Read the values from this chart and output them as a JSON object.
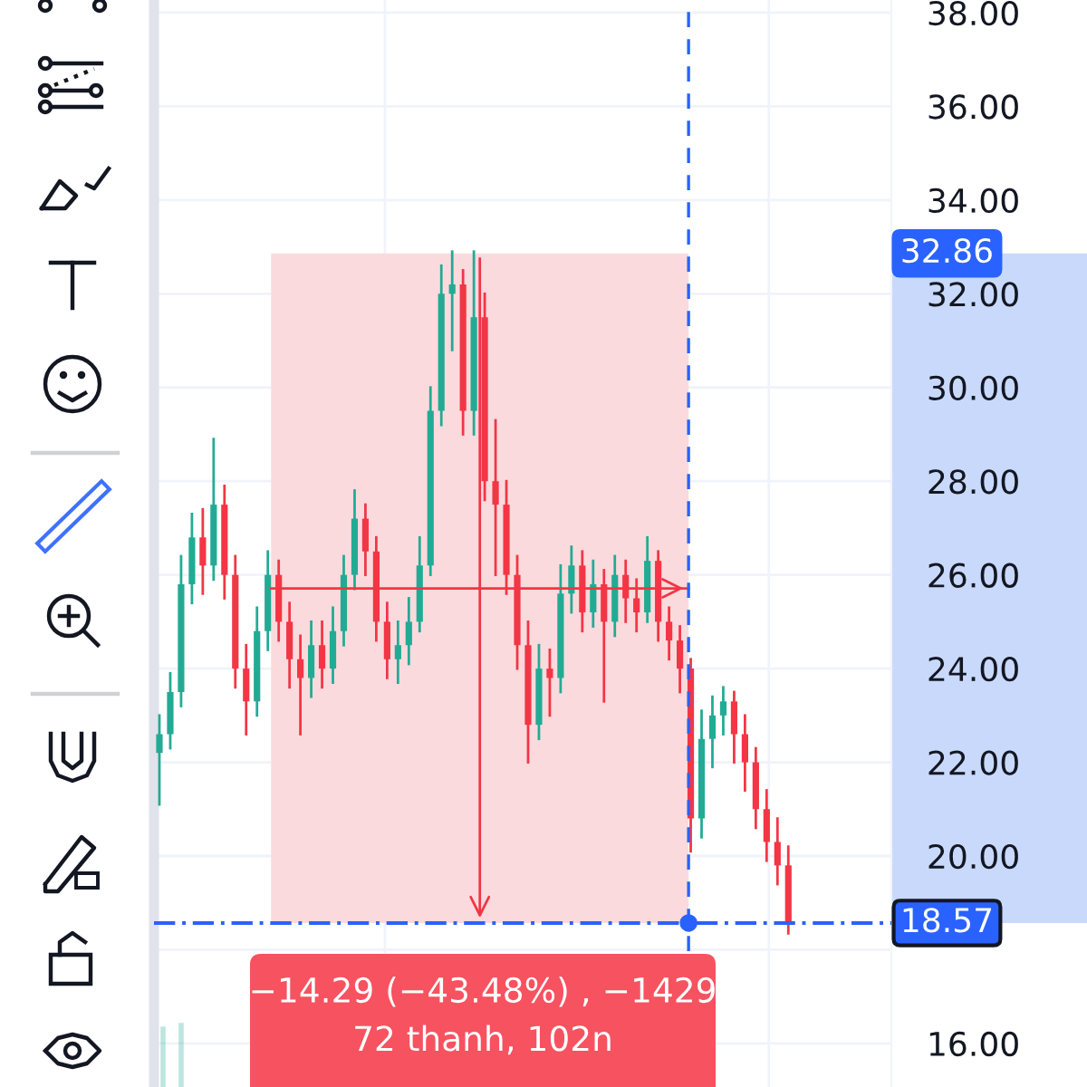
{
  "chart_data": {
    "type": "candlestick",
    "categories": [
      null,
      null,
      null,
      null,
      null,
      null,
      null,
      null,
      null,
      null,
      null,
      null,
      null,
      null,
      null,
      null,
      null,
      null,
      null,
      null,
      null,
      null,
      null,
      null,
      null,
      null,
      null,
      null,
      null,
      null,
      null,
      null,
      null,
      null,
      null,
      null,
      null,
      null,
      null,
      null,
      null,
      null,
      null,
      null,
      null,
      null,
      null,
      null,
      null,
      null,
      null,
      null,
      null,
      null,
      null,
      null,
      null,
      null,
      null,
      null,
      null,
      null,
      null,
      null,
      null,
      null,
      null,
      null
    ],
    "ohlc": [
      [
        22.2,
        23.0,
        21.1,
        22.6
      ],
      [
        22.6,
        23.9,
        22.3,
        23.5
      ],
      [
        23.5,
        26.4,
        23.2,
        25.8
      ],
      [
        25.8,
        27.3,
        25.4,
        26.8
      ],
      [
        26.8,
        27.4,
        25.6,
        26.2
      ],
      [
        26.2,
        28.9,
        25.9,
        27.5
      ],
      [
        27.5,
        27.9,
        25.5,
        26.0
      ],
      [
        26.0,
        26.4,
        23.6,
        24.0
      ],
      [
        24.0,
        24.5,
        22.6,
        23.3
      ],
      [
        23.3,
        25.3,
        23.0,
        24.8
      ],
      [
        24.8,
        26.5,
        24.4,
        26.0
      ],
      [
        26.0,
        26.3,
        24.6,
        25.0
      ],
      [
        25.0,
        25.4,
        23.6,
        24.2
      ],
      [
        24.2,
        24.7,
        22.6,
        23.8
      ],
      [
        23.8,
        25.0,
        23.4,
        24.5
      ],
      [
        24.5,
        25.0,
        23.6,
        24.0
      ],
      [
        24.0,
        25.3,
        23.7,
        24.8
      ],
      [
        24.8,
        26.4,
        24.5,
        26.0
      ],
      [
        26.0,
        27.8,
        25.7,
        27.2
      ],
      [
        27.2,
        27.5,
        26.0,
        26.5
      ],
      [
        26.5,
        26.8,
        24.6,
        25.0
      ],
      [
        25.0,
        25.4,
        23.8,
        24.2
      ],
      [
        24.2,
        25.0,
        23.7,
        24.5
      ],
      [
        24.5,
        25.5,
        24.1,
        25.0
      ],
      [
        25.0,
        26.8,
        24.8,
        26.2
      ],
      [
        26.2,
        30.0,
        26.0,
        29.5
      ],
      [
        29.5,
        32.6,
        29.2,
        32.0
      ],
      [
        32.0,
        32.9,
        30.8,
        32.2
      ],
      [
        32.2,
        32.5,
        29.0,
        29.5
      ],
      [
        29.5,
        32.9,
        29.0,
        31.5
      ],
      [
        31.5,
        32.0,
        27.6,
        28.0
      ],
      [
        28.0,
        29.3,
        26.0,
        27.5
      ],
      [
        27.5,
        28.0,
        25.6,
        26.0
      ],
      [
        26.0,
        26.4,
        24.0,
        24.5
      ],
      [
        24.5,
        25.0,
        22.0,
        22.8
      ],
      [
        22.8,
        24.5,
        22.5,
        24.0
      ],
      [
        24.0,
        24.4,
        23.0,
        23.8
      ],
      [
        23.8,
        26.2,
        23.5,
        25.6
      ],
      [
        25.6,
        26.6,
        25.2,
        26.2
      ],
      [
        26.2,
        26.5,
        24.8,
        25.2
      ],
      [
        25.2,
        26.3,
        24.9,
        25.8
      ],
      [
        25.8,
        26.1,
        23.3,
        25.0
      ],
      [
        25.0,
        26.4,
        24.7,
        26.0
      ],
      [
        26.0,
        26.3,
        25.0,
        25.5
      ],
      [
        25.5,
        25.9,
        24.8,
        25.2
      ],
      [
        25.2,
        26.8,
        25.0,
        26.3
      ],
      [
        26.3,
        26.5,
        24.6,
        25.0
      ],
      [
        25.0,
        25.3,
        24.2,
        24.6
      ],
      [
        24.6,
        24.9,
        23.5,
        24.0
      ],
      [
        24.0,
        24.2,
        20.1,
        20.8
      ],
      [
        20.8,
        23.1,
        20.4,
        22.5
      ],
      [
        22.5,
        23.4,
        21.9,
        23.0
      ],
      [
        23.0,
        23.6,
        22.6,
        23.3
      ],
      [
        23.3,
        23.5,
        22.0,
        22.6
      ],
      [
        22.6,
        23.0,
        21.4,
        22.0
      ],
      [
        22.0,
        22.3,
        20.6,
        21.0
      ],
      [
        21.0,
        21.4,
        19.9,
        20.3
      ],
      [
        20.3,
        20.8,
        19.4,
        19.8
      ],
      [
        19.8,
        20.2,
        18.35,
        18.57
      ],
      null,
      null,
      null,
      null,
      null,
      null,
      null,
      null,
      null
    ],
    "colors": [
      "#22ab94",
      "#22ab94",
      "#22ab94",
      "#22ab94",
      "#f23645",
      "#22ab94",
      "#f23645",
      "#f23645",
      "#f23645",
      "#22ab94",
      "#22ab94",
      "#f23645",
      "#f23645",
      "#f23645",
      "#22ab94",
      "#f23645",
      "#22ab94",
      "#22ab94",
      "#22ab94",
      "#f23645",
      "#f23645",
      "#f23645",
      "#22ab94",
      "#22ab94",
      "#22ab94",
      "#22ab94",
      "#22ab94",
      "#22ab94",
      "#f23645",
      "#22ab94",
      "#f23645",
      "#f23645",
      "#f23645",
      "#f23645",
      "#f23645",
      "#22ab94",
      "#f23645",
      "#22ab94",
      "#22ab94",
      "#f23645",
      "#22ab94",
      "#f23645",
      "#22ab94",
      "#f23645",
      "#f23645",
      "#22ab94",
      "#f23645",
      "#f23645",
      "#f23645",
      "#f23645",
      "#22ab94",
      "#22ab94",
      "#22ab94",
      "#f23645",
      "#f23645",
      "#f23645",
      "#f23645",
      "#f23645",
      "#f23645",
      null,
      null,
      null,
      null,
      null,
      null,
      null,
      null,
      null
    ],
    "ylim": [
      15.07,
      38.27
    ],
    "yticks": [
      {
        "value": 16,
        "label": "16.00"
      },
      {
        "value": 18,
        "label": null
      },
      {
        "value": 20,
        "label": "20.00"
      },
      {
        "value": 22,
        "label": "22.00"
      },
      {
        "value": 24,
        "label": "24.00"
      },
      {
        "value": 26,
        "label": "26.00"
      },
      {
        "value": 28,
        "label": "28.00"
      },
      {
        "value": 30,
        "label": "30.00"
      },
      {
        "value": 32,
        "label": "32.00"
      },
      {
        "value": 34,
        "label": "34.00"
      },
      {
        "value": 36,
        "label": "36.00"
      },
      {
        "value": 38,
        "label": "38.00"
      }
    ],
    "grid": true,
    "legend": false,
    "ref_lines": [
      {
        "axis": "y",
        "value": 18.57,
        "label": "18.57",
        "color": "#2962ff",
        "line_style": "dashed"
      },
      {
        "axis": "y",
        "value": 25.71,
        "label": null,
        "color": "#f23645",
        "line_style": "solid"
      }
    ],
    "bands": [
      {
        "axis": "y",
        "from": 18.57,
        "to": 32.86,
        "label": "32.86",
        "color": "#fbdadd"
      }
    ],
    "annotations": [
      {
        "text": "−14.29 (−43.48%) , −1429\n72 thanh, 102n",
        "y": 18.57
      }
    ]
  }
}
